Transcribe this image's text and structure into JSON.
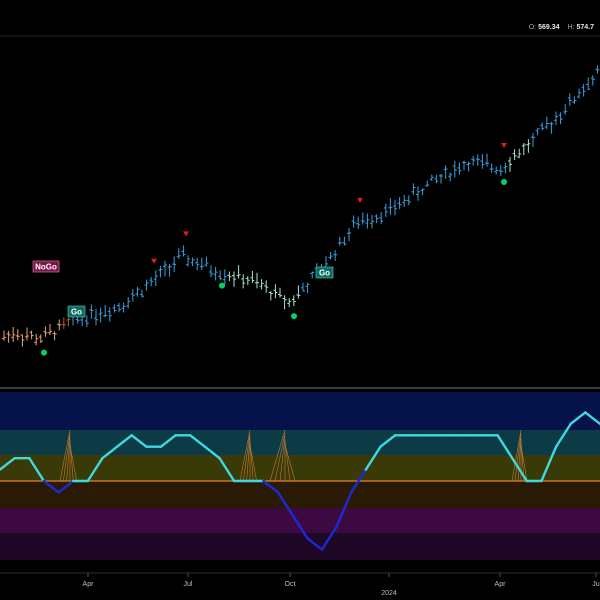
{
  "header": {
    "o_label": "O:",
    "o_value": "569.34",
    "h_label": "H:",
    "h_value": "574.7"
  },
  "colors": {
    "background": "#000000",
    "bar_strong_up": "#3aa0e0",
    "bar_weak_up": "#a8e6cf",
    "bar_weak_down": "#e8a67a",
    "bar_strong_down": "#c0582f",
    "bar_nogo_purple": "#c39be0",
    "go_marker": "#00d26a",
    "counter_marker": "#e11b1b",
    "osc_line": "#3fd9e0",
    "osc_line_low": "#1a2ad8",
    "zero_line": "#e0852a",
    "cloud": "#c77b30",
    "band1": "#06124a",
    "band2": "#0c3a45",
    "band3": "#3a3a08",
    "band4": "#2a1a05",
    "band5": "#3c0a40",
    "band6": "#1e0826"
  },
  "labels": {
    "go": "Go",
    "nogo": "NoGo"
  },
  "chart_data": [
    {
      "type": "ohlc",
      "x": [
        "2023-01",
        "2023-02",
        "2023-03",
        "2023-04",
        "2023-05",
        "2023-06",
        "2023-07",
        "2023-08",
        "2023-09",
        "2023-10",
        "2023-11",
        "2023-12",
        "2024-01",
        "2024-02",
        "2024-03",
        "2024-04",
        "2024-05",
        "2024-06",
        "2024-07"
      ],
      "price_trend": [
        392,
        398,
        394,
        407,
        415,
        430,
        448,
        438,
        432,
        418,
        440,
        470,
        478,
        496,
        510,
        506,
        522,
        543,
        570
      ],
      "x_tick_labels": [
        "Apr",
        "Jul",
        "Oct",
        "2024",
        "Apr",
        "Ju"
      ],
      "annotations": [
        {
          "label": "NoGo",
          "x": "2023-03"
        },
        {
          "label": "Go",
          "x": "2023-03"
        },
        {
          "label": "Go",
          "x": "2023-10"
        }
      ],
      "go_markers": [
        "2023-03",
        "2023-08",
        "2023-10",
        "2024-04"
      ],
      "counter_markers": [
        "2023-06",
        "2023-07",
        "2023-12",
        "2024-04"
      ]
    },
    {
      "type": "line",
      "name": "",
      "y": [
        1,
        2,
        2,
        0,
        -1,
        0,
        0,
        2,
        3,
        4,
        3,
        3,
        4,
        4,
        3,
        2,
        0,
        0,
        0,
        -1,
        -3,
        -5,
        -6,
        -4,
        -1,
        1,
        3,
        4,
        4,
        4,
        4,
        4,
        4,
        4,
        4,
        2,
        0,
        0,
        3,
        5,
        6,
        5
      ],
      "ylim": [
        -7,
        7
      ]
    }
  ]
}
